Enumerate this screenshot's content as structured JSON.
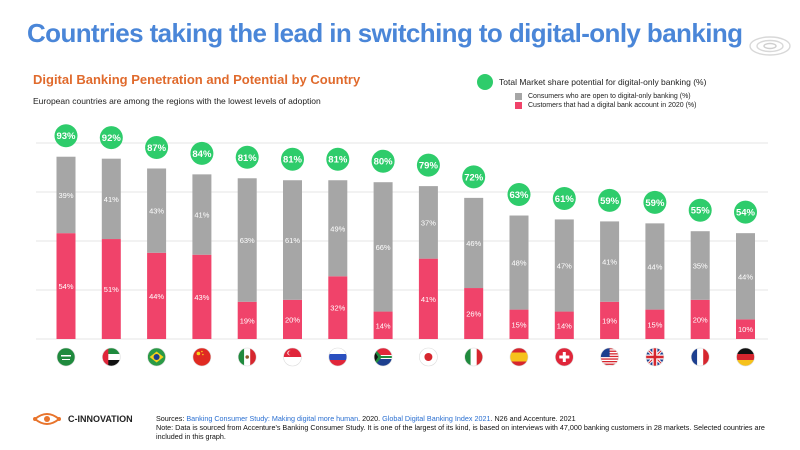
{
  "title": "Countries taking the lead in switching to digital-only banking",
  "subtitle": "Digital Banking Penetration and Potential by Country",
  "description": "European countries are among the regions with the lowest levels of adoption",
  "legend": {
    "total": "Total Market share potential for digital-only banking (%)",
    "open": "Consumers who are open to digital-only banking (%)",
    "had": "Customers that had a digital bank account in 2020 (%)"
  },
  "colors": {
    "gray": "#a6a6a6",
    "pink": "#f0436a",
    "green": "#2ecc6b",
    "title": "#4a86d8",
    "subtitle": "#e06a2c"
  },
  "chart_data": {
    "type": "bar",
    "stacked": true,
    "categories": [
      "Saudi Arabia",
      "UAE",
      "Brazil",
      "China",
      "Mexico",
      "Singapore",
      "Russia",
      "South Africa",
      "Japan",
      "Italy",
      "Spain",
      "Switzerland",
      "USA",
      "UK",
      "France",
      "Germany"
    ],
    "category_icons": [
      "flag-saudi-arabia-icon",
      "flag-uae-icon",
      "flag-brazil-icon",
      "flag-china-icon",
      "flag-mexico-icon",
      "flag-singapore-icon",
      "flag-russia-icon",
      "flag-south-africa-icon",
      "flag-japan-icon",
      "flag-italy-icon",
      "flag-spain-icon",
      "flag-switzerland-icon",
      "flag-usa-icon",
      "flag-uk-icon",
      "flag-france-icon",
      "flag-germany-icon"
    ],
    "series": [
      {
        "name": "Customers that had a digital bank account in 2020 (%)",
        "values": [
          54,
          51,
          44,
          43,
          19,
          20,
          32,
          14,
          41,
          26,
          15,
          14,
          19,
          15,
          20,
          10
        ]
      },
      {
        "name": "Consumers who are open to digital-only banking (%)",
        "values": [
          39,
          41,
          43,
          41,
          63,
          61,
          49,
          66,
          37,
          46,
          48,
          47,
          41,
          44,
          35,
          44
        ]
      }
    ],
    "totals": [
      93,
      92,
      87,
      84,
      81,
      81,
      81,
      80,
      79,
      72,
      63,
      61,
      59,
      59,
      55,
      54
    ],
    "total_labels": [
      "93%",
      "92%",
      "87%",
      "84%",
      "81%",
      "81%",
      "81%",
      "80%",
      "79%",
      "72%",
      "63%",
      "61%",
      "59%",
      "59%",
      "55%",
      "54%"
    ],
    "ylim": [
      0,
      100
    ],
    "grid": true
  },
  "brand": "C-INNOVATION",
  "sources": {
    "label": "Sources: ",
    "link1": "Banking Consumer Study: Making digital more human",
    "mid": ". 2020. ",
    "link2": "Global Digital Banking Index 2021",
    "end": ". N26 and Accenture. 2021",
    "note": "Note: Data is sourced from Accenture's Banking Consumer Study. It is one of the largest of its kind, is based on interviews with 47,000 banking customers in 28 markets. Selected countries are included in this graph."
  }
}
